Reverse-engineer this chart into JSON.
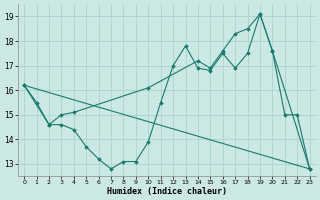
{
  "xlabel": "Humidex (Indice chaleur)",
  "xlim": [
    -0.5,
    23.5
  ],
  "ylim": [
    12.5,
    19.5
  ],
  "yticks": [
    13,
    14,
    15,
    16,
    17,
    18,
    19
  ],
  "xticks": [
    0,
    1,
    2,
    3,
    4,
    5,
    6,
    7,
    8,
    9,
    10,
    11,
    12,
    13,
    14,
    15,
    16,
    17,
    18,
    19,
    20,
    21,
    22,
    23
  ],
  "background_color": "#cce8e4",
  "grid_color": "#aad4cf",
  "line_color": "#1a7a6e",
  "line1_x": [
    0,
    1,
    2,
    3,
    4,
    5,
    6,
    7,
    8,
    9,
    10,
    11,
    12,
    13,
    14,
    15,
    16,
    17,
    18,
    19,
    20,
    21,
    22,
    23
  ],
  "line1_y": [
    16.2,
    15.5,
    14.6,
    14.6,
    14.4,
    13.7,
    13.2,
    12.8,
    13.1,
    13.1,
    13.9,
    15.5,
    17.0,
    17.8,
    16.9,
    16.8,
    17.5,
    16.9,
    17.5,
    19.1,
    17.6,
    15.0,
    15.0,
    12.8
  ],
  "line2_x": [
    0,
    2,
    3,
    4,
    10,
    14,
    15,
    16,
    17,
    18,
    19,
    20,
    23
  ],
  "line2_y": [
    16.2,
    14.6,
    15.0,
    15.1,
    16.1,
    17.2,
    16.9,
    17.6,
    18.3,
    18.5,
    19.1,
    17.6,
    12.8
  ],
  "line3_x": [
    0,
    23
  ],
  "line3_y": [
    16.2,
    12.8
  ]
}
